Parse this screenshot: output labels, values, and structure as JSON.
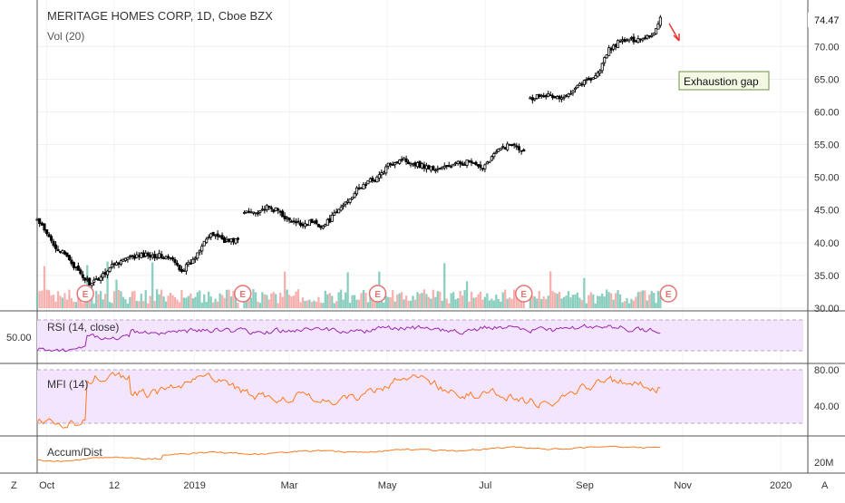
{
  "chart_data": {
    "type": "candlestick",
    "title": "MERITAGE HOMES CORP, 1D, Cboe BZX",
    "volume_label": "Vol (20)",
    "last_price": "74.47",
    "price_axis": {
      "ylim": [
        30,
        76
      ],
      "ticks": [
        "70.00",
        "65.00",
        "60.00",
        "55.00",
        "50.00",
        "45.00",
        "40.00",
        "35.00",
        "30.00"
      ]
    },
    "x_ticks": [
      "Oct",
      "12",
      "2019",
      "Mar",
      "May",
      "Jul",
      "Sep",
      "Nov",
      "2020"
    ],
    "price_series": {
      "segments": [
        [
          [
            "2018-09-25",
            43.5
          ],
          [
            "2018-10-01",
            41.2
          ],
          [
            "2018-10-08",
            39.0
          ],
          [
            "2018-10-15",
            37.5
          ],
          [
            "2018-10-22",
            35.0
          ],
          [
            "2018-10-29",
            33.6
          ],
          [
            "2018-11-05",
            35.2
          ],
          [
            "2018-11-12",
            36.8
          ],
          [
            "2018-11-19",
            37.5
          ],
          [
            "2018-11-26",
            37.9
          ],
          [
            "2018-12-03",
            38.2
          ],
          [
            "2018-12-10",
            38.0
          ],
          [
            "2018-12-17",
            37.6
          ],
          [
            "2018-12-24",
            35.8
          ],
          [
            "2018-12-31",
            37.2
          ],
          [
            "2019-01-07",
            40.5
          ],
          [
            "2019-01-14",
            41.3
          ],
          [
            "2019-01-21",
            40.2
          ],
          [
            "2019-01-28",
            40.5
          ]
        ],
        [
          [
            "2019-02-01",
            44.6
          ],
          [
            "2019-02-08",
            44.8
          ],
          [
            "2019-02-15",
            45.3
          ],
          [
            "2019-02-22",
            44.9
          ],
          [
            "2019-03-01",
            43.3
          ],
          [
            "2019-03-08",
            42.8
          ],
          [
            "2019-03-15",
            43.2
          ],
          [
            "2019-03-22",
            42.5
          ],
          [
            "2019-03-29",
            44.2
          ],
          [
            "2019-04-05",
            46.2
          ],
          [
            "2019-04-12",
            48.0
          ],
          [
            "2019-04-19",
            49.3
          ],
          [
            "2019-04-26",
            50.2
          ],
          [
            "2019-05-03",
            52.2
          ],
          [
            "2019-05-10",
            52.8
          ],
          [
            "2019-05-17",
            52.2
          ],
          [
            "2019-05-24",
            51.7
          ],
          [
            "2019-05-31",
            51.2
          ],
          [
            "2019-06-07",
            51.6
          ],
          [
            "2019-06-14",
            52.1
          ],
          [
            "2019-06-21",
            52.4
          ],
          [
            "2019-06-28",
            51.2
          ],
          [
            "2019-07-05",
            53.2
          ],
          [
            "2019-07-12",
            54.6
          ],
          [
            "2019-07-19",
            55.2
          ],
          [
            "2019-07-25",
            54.0
          ]
        ],
        [
          [
            "2019-07-29",
            62.0
          ],
          [
            "2019-08-05",
            62.8
          ],
          [
            "2019-08-12",
            62.3
          ],
          [
            "2019-08-19",
            62.0
          ],
          [
            "2019-08-26",
            64.0
          ],
          [
            "2019-09-02",
            64.8
          ],
          [
            "2019-09-09",
            65.8
          ],
          [
            "2019-09-16",
            69.5
          ],
          [
            "2019-09-23",
            70.8
          ],
          [
            "2019-09-30",
            71.0
          ],
          [
            "2019-10-07",
            71.3
          ],
          [
            "2019-10-14",
            72.0
          ],
          [
            "2019-10-18",
            74.47
          ]
        ]
      ]
    },
    "earnings_markers": {
      "label": "E",
      "dates": [
        "2018-10-25",
        "2019-01-31",
        "2019-04-25",
        "2019-07-25",
        "2019-10-23"
      ]
    },
    "annotation": {
      "text": "Exhaustion gap",
      "arrow_color": "#e53935"
    },
    "panes": {
      "rsi": {
        "label": "RSI (14, close)",
        "tick": "50.00",
        "color": "#9c27b0"
      },
      "mfi": {
        "label": "MFI (14)",
        "ticks": [
          "80.00",
          "40.00"
        ],
        "color": "#ff7a1f"
      },
      "accum": {
        "label": "Accum/Dist",
        "tick": "20M",
        "color": "#ff7a1f"
      }
    },
    "colors": {
      "up": "#ffffff",
      "down": "#000000",
      "volume_up": "#76c6b4",
      "volume_down": "#f4a3a0",
      "band_fill": "#f3e5fd",
      "earnings": "#e57373"
    }
  },
  "ui": {
    "z_button": "Z",
    "a_button": "A"
  }
}
